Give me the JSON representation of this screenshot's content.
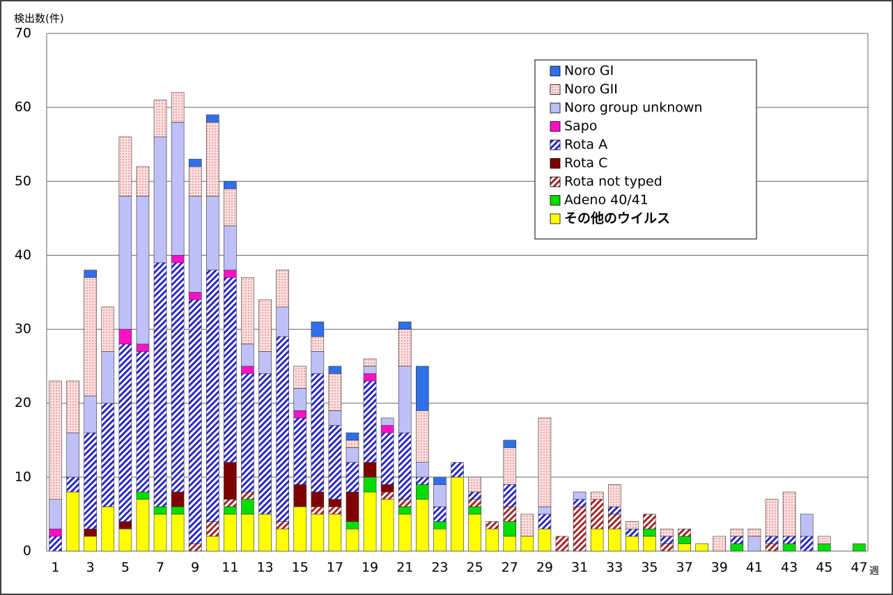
{
  "chart_data": {
    "type": "stacked_bar",
    "y_label": "検出数(件)",
    "x_label": "週",
    "categories": [
      "1",
      null,
      "3",
      null,
      "5",
      null,
      "7",
      null,
      "9",
      null,
      "11",
      null,
      "13",
      null,
      "15",
      null,
      "17",
      null,
      "19",
      null,
      "21",
      null,
      "23",
      null,
      "25",
      null,
      "27",
      null,
      "29",
      null,
      "31",
      null,
      "33",
      null,
      "35",
      null,
      "37",
      null,
      "39",
      null,
      "41",
      null,
      "43",
      null,
      "45",
      null,
      "47"
    ],
    "ylim": [
      0,
      70
    ],
    "yticks": [
      0,
      10,
      20,
      30,
      40,
      50,
      60,
      70
    ],
    "grid": true,
    "legend": "upper right",
    "series": [
      {
        "name": "Noro GI",
        "color": "#2f6fe8",
        "pattern": "solid",
        "values": [
          0,
          0,
          1,
          0,
          0,
          0,
          0,
          0,
          1,
          1,
          1,
          0,
          0,
          0,
          0,
          2,
          1,
          1,
          0,
          0,
          1,
          6,
          1,
          0,
          0,
          0,
          1,
          0,
          0,
          0,
          0,
          0,
          0,
          0,
          0,
          0,
          0,
          0,
          0,
          0,
          0,
          0,
          0,
          0,
          0,
          0,
          0
        ]
      },
      {
        "name": "Noro GII",
        "color": "#e04848",
        "pattern": "dots",
        "values": [
          16,
          7,
          16,
          6,
          8,
          4,
          5,
          4,
          4,
          10,
          5,
          9,
          7,
          5,
          3,
          2,
          5,
          1,
          1,
          0,
          5,
          7,
          0,
          0,
          2,
          0,
          5,
          3,
          12,
          0,
          0,
          1,
          3,
          1,
          0,
          1,
          0,
          0,
          2,
          1,
          1,
          5,
          6,
          0,
          1,
          0,
          0
        ]
      },
      {
        "name": "Noro group unknown",
        "color": "#c0c0f8",
        "pattern": "solid",
        "values": [
          4,
          6,
          5,
          7,
          18,
          20,
          17,
          18,
          13,
          10,
          6,
          3,
          3,
          4,
          3,
          3,
          2,
          2,
          1,
          1,
          9,
          2,
          3,
          0,
          0,
          0,
          0,
          0,
          1,
          0,
          1,
          0,
          0,
          0,
          0,
          0,
          0,
          0,
          0,
          0,
          2,
          0,
          0,
          3,
          0,
          0,
          0
        ]
      },
      {
        "name": "Sapo",
        "color": "#ff10c8",
        "pattern": "solid",
        "values": [
          1,
          0,
          0,
          0,
          2,
          1,
          0,
          1,
          1,
          0,
          1,
          1,
          0,
          0,
          1,
          0,
          0,
          0,
          1,
          1,
          0,
          0,
          0,
          0,
          0,
          0,
          0,
          0,
          0,
          0,
          0,
          0,
          0,
          0,
          0,
          0,
          0,
          0,
          0,
          0,
          0,
          0,
          0,
          0,
          0,
          0,
          0
        ]
      },
      {
        "name": "Rota A",
        "color": "#2828c8",
        "pattern": "hatch",
        "values": [
          2,
          2,
          13,
          14,
          24,
          19,
          33,
          31,
          33,
          34,
          25,
          16,
          19,
          25,
          9,
          16,
          10,
          4,
          11,
          7,
          9,
          1,
          2,
          2,
          1,
          0,
          3,
          0,
          2,
          0,
          1,
          0,
          1,
          1,
          0,
          1,
          0,
          0,
          0,
          1,
          0,
          1,
          1,
          2,
          0,
          0,
          0
        ]
      },
      {
        "name": "Rota C",
        "color": "#800000",
        "pattern": "solid",
        "values": [
          0,
          0,
          1,
          0,
          1,
          0,
          0,
          2,
          0,
          0,
          5,
          0,
          0,
          0,
          3,
          2,
          1,
          4,
          2,
          1,
          0,
          0,
          0,
          0,
          0,
          0,
          0,
          0,
          0,
          0,
          0,
          0,
          0,
          0,
          0,
          0,
          0,
          0,
          0,
          0,
          0,
          0,
          0,
          0,
          0,
          0,
          0
        ]
      },
      {
        "name": "Rota not typed",
        "color": "#a02828",
        "pattern": "hatch",
        "values": [
          0,
          0,
          0,
          0,
          0,
          0,
          0,
          0,
          1,
          2,
          1,
          1,
          0,
          1,
          0,
          1,
          1,
          0,
          0,
          1,
          1,
          0,
          0,
          0,
          1,
          1,
          2,
          0,
          0,
          2,
          6,
          4,
          2,
          0,
          2,
          1,
          1,
          0,
          0,
          0,
          0,
          1,
          0,
          0,
          0,
          0,
          0
        ]
      },
      {
        "name": "Adeno 40/41",
        "color": "#00dd00",
        "pattern": "solid",
        "values": [
          0,
          0,
          0,
          0,
          0,
          1,
          1,
          1,
          0,
          0,
          1,
          2,
          0,
          0,
          0,
          0,
          0,
          1,
          2,
          0,
          1,
          2,
          1,
          0,
          1,
          0,
          2,
          0,
          0,
          0,
          0,
          0,
          0,
          0,
          1,
          0,
          1,
          0,
          0,
          1,
          0,
          0,
          1,
          0,
          1,
          0,
          1
        ]
      },
      {
        "name": "その他のウイルス",
        "color": "#ffff00",
        "pattern": "solid",
        "values": [
          0,
          8,
          2,
          6,
          3,
          7,
          5,
          5,
          0,
          2,
          5,
          5,
          5,
          3,
          6,
          5,
          5,
          3,
          8,
          7,
          5,
          7,
          3,
          10,
          5,
          3,
          2,
          2,
          3,
          0,
          0,
          3,
          3,
          2,
          2,
          0,
          1,
          1,
          0,
          0,
          0,
          0,
          0,
          0,
          0,
          0,
          0
        ]
      }
    ]
  }
}
